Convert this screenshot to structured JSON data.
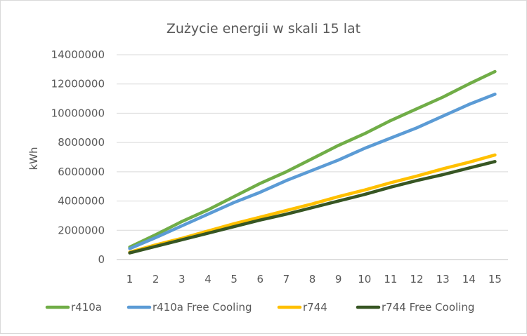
{
  "chart_data": {
    "type": "line",
    "title": "Zużycie energii w skali 15 lat",
    "xlabel": "",
    "ylabel": "kWh",
    "x": [
      1,
      2,
      3,
      4,
      5,
      6,
      7,
      8,
      9,
      10,
      11,
      12,
      13,
      14,
      15
    ],
    "xticks": [
      "1",
      "2",
      "3",
      "4",
      "5",
      "6",
      "7",
      "8",
      "9",
      "10",
      "11",
      "12",
      "13",
      "14",
      "15"
    ],
    "ylim": [
      0,
      14000000
    ],
    "yticks": [
      "0",
      "2000000",
      "4000000",
      "6000000",
      "8000000",
      "10000000",
      "12000000",
      "14000000"
    ],
    "ytick_values": [
      0,
      2000000,
      4000000,
      6000000,
      8000000,
      10000000,
      12000000,
      14000000
    ],
    "grid": "horizontal",
    "legend": "bottom",
    "series": [
      {
        "name": "r410a",
        "color": "#70ad47",
        "values": [
          850000,
          1700000,
          2600000,
          3400000,
          4300000,
          5200000,
          6000000,
          6900000,
          7800000,
          8600000,
          9500000,
          10300000,
          11100000,
          12000000,
          12850000
        ]
      },
      {
        "name": "r410a Free Cooling",
        "color": "#5b9bd5",
        "values": [
          750000,
          1500000,
          2300000,
          3100000,
          3900000,
          4600000,
          5400000,
          6100000,
          6800000,
          7600000,
          8300000,
          9000000,
          9800000,
          10600000,
          11300000
        ]
      },
      {
        "name": "r744",
        "color": "#ffc000",
        "values": [
          500000,
          1000000,
          1450000,
          1950000,
          2450000,
          2900000,
          3350000,
          3800000,
          4300000,
          4750000,
          5250000,
          5700000,
          6200000,
          6650000,
          7150000
        ]
      },
      {
        "name": "r744 Free Cooling",
        "color": "#375623",
        "values": [
          450000,
          900000,
          1350000,
          1800000,
          2250000,
          2700000,
          3100000,
          3550000,
          4000000,
          4450000,
          4950000,
          5400000,
          5800000,
          6250000,
          6700000
        ]
      }
    ]
  }
}
